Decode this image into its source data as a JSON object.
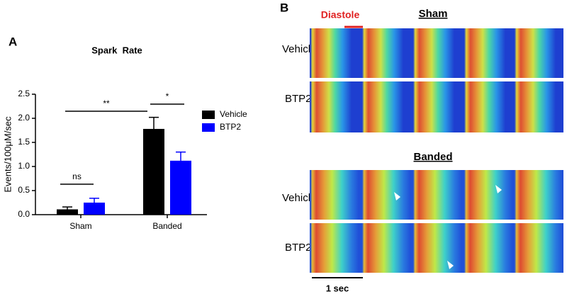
{
  "chart_data": {
    "type": "bar",
    "panel_label": "A",
    "title": "Spark  Rate",
    "y_label": "Events/100μM/sec",
    "categories": [
      "Sham",
      "Banded"
    ],
    "series": [
      {
        "name": "Vehicle",
        "color": "#000000",
        "values": [
          0.11,
          1.78
        ],
        "errors": [
          0.05,
          0.24
        ]
      },
      {
        "name": "BTP2",
        "color": "#0000ff",
        "values": [
          0.25,
          1.12
        ],
        "errors": [
          0.09,
          0.18
        ]
      }
    ],
    "ylim": [
      0,
      2.5
    ],
    "yticks": [
      {
        "value": 0,
        "label": "0.0"
      },
      {
        "value": 0.5,
        "label": "0.5"
      },
      {
        "value": 1,
        "label": "1.0"
      },
      {
        "value": 1.5,
        "label": "1.5"
      },
      {
        "value": 2,
        "label": "2.0"
      },
      {
        "value": 2.5,
        "label": "2.5"
      }
    ],
    "annotations": [
      "**",
      "*",
      "ns"
    ]
  },
  "panel_b": {
    "label": "B",
    "diastole_label": "Diastole",
    "groups": [
      {
        "title": "Sham",
        "rows": [
          "Vehicle",
          "BTP2"
        ]
      },
      {
        "title": "Banded",
        "rows": [
          "Vehicle",
          "BTP2"
        ]
      }
    ],
    "scale_bar_label": "1 sec"
  }
}
